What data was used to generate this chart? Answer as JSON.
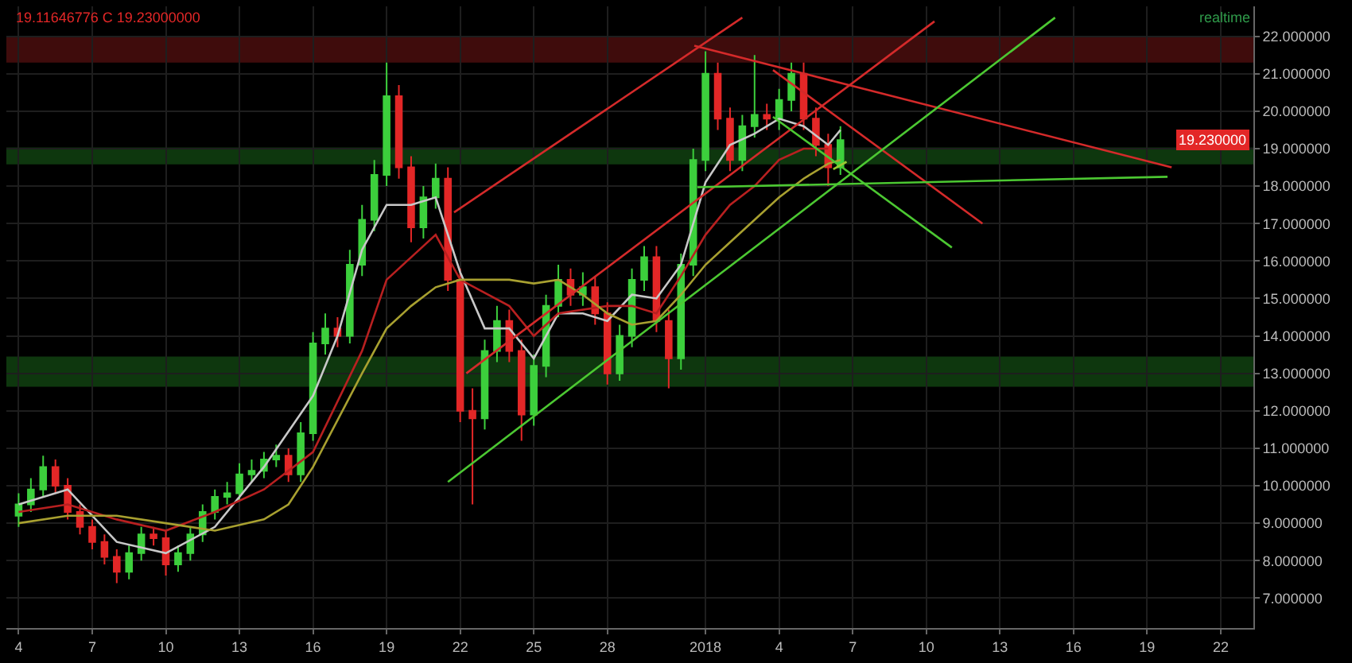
{
  "chart_data": {
    "type": "candlestick",
    "annotations": [
      "19.11646776 C 19.23000000",
      "realtime",
      "19.230000"
    ],
    "x": [
      "2017-12-04T00:00",
      "2017-12-04T12:00",
      "2017-12-05T00:00",
      "2017-12-05T12:00",
      "2017-12-06T00:00",
      "2017-12-06T12:00",
      "2017-12-07T00:00",
      "2017-12-07T12:00",
      "2017-12-08T00:00",
      "2017-12-08T12:00",
      "2017-12-09T00:00",
      "2017-12-09T12:00",
      "2017-12-10T00:00",
      "2017-12-10T12:00",
      "2017-12-11T00:00",
      "2017-12-11T12:00",
      "2017-12-12T00:00",
      "2017-12-12T12:00",
      "2017-12-13T00:00",
      "2017-12-13T12:00",
      "2017-12-14T00:00",
      "2017-12-14T12:00",
      "2017-12-15T00:00",
      "2017-12-15T12:00",
      "2017-12-16T00:00",
      "2017-12-16T12:00",
      "2017-12-17T00:00",
      "2017-12-17T12:00",
      "2017-12-18T00:00",
      "2017-12-18T12:00",
      "2017-12-19T00:00",
      "2017-12-19T12:00",
      "2017-12-20T00:00",
      "2017-12-20T12:00",
      "2017-12-21T00:00",
      "2017-12-21T12:00",
      "2017-12-22T00:00",
      "2017-12-22T12:00",
      "2017-12-23T00:00",
      "2017-12-23T12:00",
      "2017-12-24T00:00",
      "2017-12-24T12:00",
      "2017-12-25T00:00",
      "2017-12-25T12:00",
      "2017-12-26T00:00",
      "2017-12-26T12:00",
      "2017-12-27T00:00",
      "2017-12-27T12:00",
      "2017-12-28T00:00",
      "2017-12-28T12:00",
      "2017-12-29T00:00",
      "2017-12-29T12:00",
      "2017-12-30T00:00",
      "2017-12-30T12:00",
      "2017-12-31T00:00",
      "2017-12-31T12:00",
      "2018-01-01T00:00",
      "2018-01-01T12:00",
      "2018-01-02T00:00",
      "2018-01-02T12:00",
      "2018-01-03T00:00",
      "2018-01-03T12:00",
      "2018-01-04T00:00",
      "2018-01-04T12:00",
      "2018-01-05T00:00",
      "2018-01-05T12:00",
      "2018-01-06T00:00",
      "2018-01-06T12:00"
    ],
    "ohlc": [
      [
        9.2,
        9.8,
        8.9,
        9.5
      ],
      [
        9.5,
        10.2,
        9.3,
        9.9
      ],
      [
        9.9,
        10.8,
        9.7,
        10.5
      ],
      [
        10.5,
        10.7,
        9.8,
        10.0
      ],
      [
        10.0,
        10.2,
        9.1,
        9.3
      ],
      [
        9.3,
        9.5,
        8.7,
        8.9
      ],
      [
        8.9,
        9.1,
        8.3,
        8.5
      ],
      [
        8.5,
        8.7,
        7.9,
        8.1
      ],
      [
        8.1,
        8.3,
        7.4,
        7.7
      ],
      [
        7.7,
        8.4,
        7.5,
        8.2
      ],
      [
        8.2,
        8.9,
        8.0,
        8.7
      ],
      [
        8.7,
        8.9,
        8.4,
        8.6
      ],
      [
        8.6,
        8.8,
        7.6,
        7.9
      ],
      [
        7.9,
        8.4,
        7.7,
        8.2
      ],
      [
        8.2,
        8.9,
        8.0,
        8.7
      ],
      [
        8.7,
        9.5,
        8.5,
        9.3
      ],
      [
        9.3,
        9.9,
        9.1,
        9.7
      ],
      [
        9.7,
        10.1,
        9.5,
        9.8
      ],
      [
        9.8,
        10.6,
        9.6,
        10.3
      ],
      [
        10.3,
        10.7,
        10.1,
        10.4
      ],
      [
        10.4,
        10.9,
        10.2,
        10.7
      ],
      [
        10.7,
        11.1,
        10.5,
        10.8
      ],
      [
        10.8,
        11.0,
        10.1,
        10.3
      ],
      [
        10.3,
        11.7,
        10.1,
        11.4
      ],
      [
        11.4,
        14.1,
        11.2,
        13.8
      ],
      [
        13.8,
        14.6,
        13.5,
        14.2
      ],
      [
        14.2,
        14.5,
        13.7,
        14.0
      ],
      [
        14.0,
        16.3,
        13.8,
        15.9
      ],
      [
        15.9,
        17.5,
        15.6,
        17.1
      ],
      [
        17.1,
        18.7,
        16.8,
        18.3
      ],
      [
        18.3,
        21.3,
        18.0,
        20.4
      ],
      [
        20.4,
        20.7,
        18.2,
        18.5
      ],
      [
        18.5,
        18.8,
        16.5,
        16.9
      ],
      [
        16.9,
        18.0,
        16.6,
        17.7
      ],
      [
        17.7,
        18.6,
        17.4,
        18.2
      ],
      [
        18.2,
        18.5,
        15.2,
        15.5
      ],
      [
        15.5,
        15.8,
        11.7,
        12.0
      ],
      [
        12.0,
        12.6,
        9.5,
        11.8
      ],
      [
        11.8,
        13.9,
        11.5,
        13.6
      ],
      [
        13.6,
        14.8,
        13.3,
        14.4
      ],
      [
        14.4,
        14.7,
        13.3,
        13.6
      ],
      [
        13.6,
        13.9,
        11.2,
        11.9
      ],
      [
        11.9,
        13.5,
        11.6,
        13.2
      ],
      [
        13.2,
        15.1,
        12.9,
        14.8
      ],
      [
        14.8,
        15.9,
        14.5,
        15.5
      ],
      [
        15.5,
        15.8,
        14.8,
        15.1
      ],
      [
        15.1,
        15.7,
        14.8,
        15.3
      ],
      [
        15.3,
        15.6,
        14.3,
        14.6
      ],
      [
        14.6,
        14.9,
        12.7,
        13.0
      ],
      [
        13.0,
        14.3,
        12.8,
        14.0
      ],
      [
        14.0,
        15.8,
        13.7,
        15.5
      ],
      [
        15.5,
        16.4,
        15.2,
        16.1
      ],
      [
        16.1,
        16.4,
        14.1,
        14.4
      ],
      [
        14.4,
        14.7,
        12.6,
        13.4
      ],
      [
        13.4,
        16.2,
        13.1,
        15.9
      ],
      [
        15.9,
        19.0,
        15.6,
        18.7
      ],
      [
        18.7,
        21.6,
        18.4,
        21.0
      ],
      [
        21.0,
        21.3,
        19.5,
        19.8
      ],
      [
        19.8,
        20.1,
        18.4,
        18.7
      ],
      [
        18.7,
        19.9,
        18.4,
        19.6
      ],
      [
        19.6,
        21.5,
        19.3,
        19.9
      ],
      [
        19.9,
        20.2,
        19.5,
        19.8
      ],
      [
        19.8,
        20.6,
        19.5,
        20.3
      ],
      [
        20.3,
        21.3,
        20.0,
        21.0
      ],
      [
        21.0,
        21.3,
        19.5,
        19.8
      ],
      [
        19.8,
        20.1,
        18.8,
        19.1
      ],
      [
        19.1,
        19.4,
        18.0,
        18.5
      ],
      [
        18.5,
        19.6,
        18.3,
        19.23
      ]
    ],
    "series": [
      {
        "type": "line",
        "color": "#c8c8c8",
        "x": [
          "2017-12-04",
          "2017-12-06",
          "2017-12-08",
          "2017-12-10",
          "2017-12-12",
          "2017-12-14",
          "2017-12-16",
          "2017-12-17",
          "2017-12-18",
          "2017-12-19",
          "2017-12-20",
          "2017-12-21",
          "2017-12-22",
          "2017-12-23",
          "2017-12-24",
          "2017-12-25",
          "2017-12-26",
          "2017-12-27",
          "2017-12-28",
          "2017-12-29",
          "2017-12-30",
          "2017-12-31",
          "2018-01-01",
          "2018-01-02",
          "2018-01-03",
          "2018-01-04",
          "2018-01-05",
          "2018-01-06",
          "2018-01-06T12:00"
        ],
        "values": [
          9.5,
          9.9,
          8.5,
          8.2,
          8.9,
          10.5,
          12.4,
          14.0,
          16.3,
          17.5,
          17.5,
          17.7,
          15.7,
          14.2,
          14.2,
          13.4,
          14.6,
          14.6,
          14.4,
          15.1,
          15.0,
          15.9,
          18.1,
          19.1,
          19.4,
          19.8,
          19.6,
          19.1,
          19.5
        ]
      },
      {
        "type": "line",
        "color": "#b82020",
        "x": [
          "2017-12-04",
          "2017-12-06",
          "2017-12-08",
          "2017-12-10",
          "2017-12-12",
          "2017-12-14",
          "2017-12-16",
          "2017-12-18",
          "2017-12-19",
          "2017-12-20",
          "2017-12-21",
          "2017-12-22",
          "2017-12-24",
          "2017-12-25",
          "2017-12-26",
          "2017-12-28",
          "2017-12-29",
          "2017-12-30",
          "2017-12-31",
          "2018-01-01",
          "2018-01-02",
          "2018-01-03",
          "2018-01-04",
          "2018-01-05",
          "2018-01-06"
        ],
        "values": [
          9.3,
          9.5,
          9.1,
          8.8,
          9.3,
          9.9,
          10.9,
          13.6,
          15.5,
          16.1,
          16.7,
          15.5,
          14.8,
          14.0,
          14.6,
          14.8,
          14.8,
          14.6,
          15.6,
          16.7,
          17.5,
          18.0,
          18.7,
          19.0,
          19.0
        ]
      },
      {
        "type": "line",
        "color": "#a8a030",
        "x": [
          "2017-12-04",
          "2017-12-06",
          "2017-12-08",
          "2017-12-10",
          "2017-12-12",
          "2017-12-14",
          "2017-12-15",
          "2017-12-16",
          "2017-12-18",
          "2017-12-19",
          "2017-12-20",
          "2017-12-21",
          "2017-12-22",
          "2017-12-24",
          "2017-12-25",
          "2017-12-26",
          "2017-12-27",
          "2017-12-28",
          "2017-12-29",
          "2017-12-30",
          "2017-12-31",
          "2018-01-01",
          "2018-01-02",
          "2018-01-03",
          "2018-01-04",
          "2018-01-05",
          "2018-01-06",
          "2018-01-06T12:00"
        ],
        "values": [
          9.0,
          9.2,
          9.2,
          9.0,
          8.8,
          9.1,
          9.5,
          10.5,
          13.0,
          14.2,
          14.8,
          15.3,
          15.5,
          15.5,
          15.4,
          15.5,
          15.1,
          14.6,
          14.3,
          14.4,
          15.1,
          15.9,
          16.5,
          17.1,
          17.7,
          18.2,
          18.6,
          18.7
        ]
      },
      {
        "type": "line",
        "color": "#d42a2a",
        "x": [
          "2017-12-21T18:00",
          "2018-01-02T12:00"
        ],
        "values": [
          17.3,
          22.5
        ]
      },
      {
        "type": "line",
        "color": "#d42a2a",
        "x": [
          "2017-12-22T06:00",
          "2018-01-10T08:00"
        ],
        "values": [
          13.0,
          22.4
        ]
      },
      {
        "type": "line",
        "color": "#d42a2a",
        "x": [
          "2017-12-31T13:00",
          "2018-01-20T00:00"
        ],
        "values": [
          21.75,
          18.5
        ]
      },
      {
        "type": "line",
        "color": "#d42a2a",
        "x": [
          "2018-01-03T18:00",
          "2018-01-12T07:00"
        ],
        "values": [
          21.1,
          17.0
        ]
      },
      {
        "type": "line",
        "color": "#4cc832",
        "x": [
          "2017-12-21T12:00",
          "2018-01-15T06:00"
        ],
        "values": [
          10.1,
          22.5
        ]
      },
      {
        "type": "line",
        "color": "#4cc832",
        "x": [
          "2017-12-31T16:00",
          "2018-01-19T20:00"
        ],
        "values": [
          17.97,
          18.25
        ]
      },
      {
        "type": "line",
        "color": "#4cc832",
        "x": [
          "2018-01-03T18:00",
          "2018-01-11T01:00"
        ],
        "values": [
          19.85,
          16.36
        ]
      },
      {
        "type": "line",
        "color": "#9cc832",
        "x": [
          "2018-01-06T05:00",
          "2018-01-06T18:00"
        ],
        "values": [
          18.45,
          18.65
        ]
      }
    ],
    "bands": [
      {
        "axis": "y",
        "from": 21.3,
        "to": 22.0,
        "color": "#8b1a1a"
      },
      {
        "axis": "y",
        "from": 18.58,
        "to": 19.03,
        "color": "#1f7a1f"
      },
      {
        "axis": "y",
        "from": 12.64,
        "to": 13.45,
        "color": "#1f7a1f"
      }
    ],
    "xlim": [
      "2017-12-03T12:00",
      "2018-01-23T08:00"
    ],
    "xticks": [
      {
        "value": "2017-12-04",
        "label": "4"
      },
      {
        "value": "2017-12-07",
        "label": "7"
      },
      {
        "value": "2017-12-10",
        "label": "10"
      },
      {
        "value": "2017-12-13",
        "label": "13"
      },
      {
        "value": "2017-12-16",
        "label": "16"
      },
      {
        "value": "2017-12-19",
        "label": "19"
      },
      {
        "value": "2017-12-22",
        "label": "22"
      },
      {
        "value": "2017-12-25",
        "label": "25"
      },
      {
        "value": "2017-12-28",
        "label": "28"
      },
      {
        "value": "2018-01-01",
        "label": "2018"
      },
      {
        "value": "2018-01-04",
        "label": "4"
      },
      {
        "value": "2018-01-07",
        "label": "7"
      },
      {
        "value": "2018-01-10",
        "label": "10"
      },
      {
        "value": "2018-01-13",
        "label": "13"
      },
      {
        "value": "2018-01-16",
        "label": "16"
      },
      {
        "value": "2018-01-19",
        "label": "19"
      },
      {
        "value": "2018-01-22",
        "label": "22"
      }
    ],
    "ylim": [
      6.2,
      22.8
    ],
    "yticks": [
      {
        "value": 7,
        "label": "7.000000"
      },
      {
        "value": 8,
        "label": "8.000000"
      },
      {
        "value": 9,
        "label": "9.000000"
      },
      {
        "value": 10,
        "label": "10.000000"
      },
      {
        "value": 11,
        "label": "11.000000"
      },
      {
        "value": 12,
        "label": "12.000000"
      },
      {
        "value": 13,
        "label": "13.000000"
      },
      {
        "value": 14,
        "label": "14.000000"
      },
      {
        "value": 15,
        "label": "15.000000"
      },
      {
        "value": 16,
        "label": "16.000000"
      },
      {
        "value": 17,
        "label": "17.000000"
      },
      {
        "value": 18,
        "label": "18.000000"
      },
      {
        "value": 19,
        "label": "19.000000"
      },
      {
        "value": 20,
        "label": "20.000000"
      },
      {
        "value": 21,
        "label": "21.000000"
      },
      {
        "value": 22,
        "label": "22.000000"
      }
    ],
    "grid": true
  }
}
